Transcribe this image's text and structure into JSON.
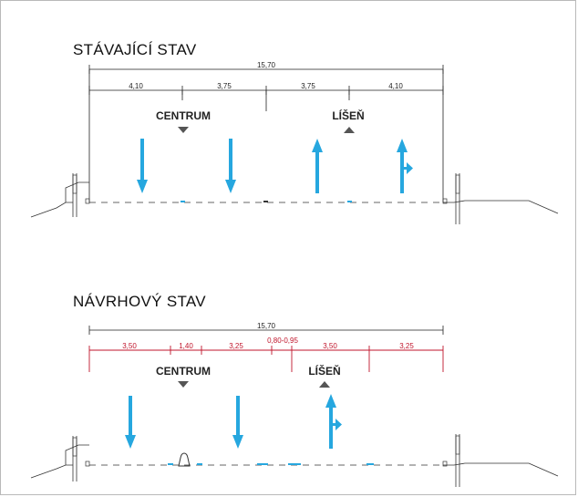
{
  "colors": {
    "arrow": "#26a7df",
    "dimension_existing": "#222222",
    "dimension_proposed": "#c0152b",
    "background": "#ffffff"
  },
  "existing": {
    "title": "STÁVAJÍCÍ STAV",
    "total_width": "15,70",
    "segments": [
      "4,10",
      "3,75",
      "3,75",
      "4,10"
    ],
    "direction_left": "CENTRUM",
    "direction_right": "LÍŠEŇ",
    "lanes": [
      {
        "direction": "down",
        "type": "straight"
      },
      {
        "direction": "down",
        "type": "straight"
      },
      {
        "direction": "up",
        "type": "straight"
      },
      {
        "direction": "up",
        "type": "straight-right"
      }
    ]
  },
  "proposed": {
    "title": "NÁVRHOVÝ STAV",
    "total_width": "15,70",
    "segments": [
      "3,50",
      "1,40",
      "3,25",
      "0,80-0,95",
      "3,50",
      "3,25"
    ],
    "direction_left": "CENTRUM",
    "direction_right": "LÍŠEŇ",
    "lanes": [
      {
        "direction": "down",
        "type": "straight"
      },
      {
        "direction": "down",
        "type": "straight"
      },
      {
        "direction": "up",
        "type": "straight-right"
      }
    ]
  }
}
